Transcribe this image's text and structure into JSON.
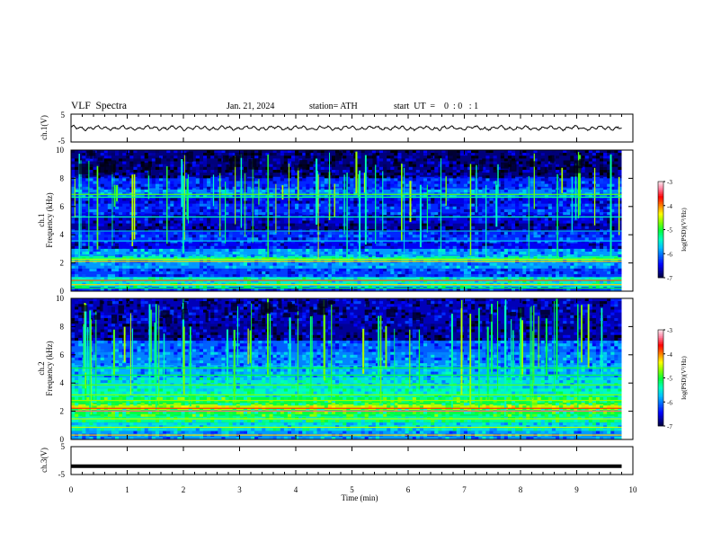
{
  "header": {
    "title": "VLF  Spectra",
    "date": "Jan. 21, 2024",
    "station": "station= ATH",
    "start": "start  UT  =    0  : 0   : 1"
  },
  "colors": {
    "background": "#ffffff",
    "axis": "#000000",
    "colormap": [
      "#000000",
      "#000080",
      "#0000ff",
      "#0060ff",
      "#00c0ff",
      "#00ffc0",
      "#00ff40",
      "#80ff00",
      "#ffff00",
      "#ff8000",
      "#ff0000",
      "#ff80a0",
      "#ffffff"
    ]
  },
  "chart_data": [
    {
      "type": "line",
      "name": "ch1-waveform",
      "ylabel": "ch.1(V)",
      "ylim": [
        -5,
        5
      ],
      "yticks": [
        "5",
        "-5"
      ],
      "xlim": [
        0,
        10
      ],
      "note_values": "near-zero voltage trace spanning 0 to ~9.8 min",
      "y_mean": 0,
      "x_end": 9.8
    },
    {
      "type": "heatmap",
      "name": "ch1-spectrogram",
      "ylabel": "ch.1\nFrequency  (kHz)",
      "ylabel_line1": "ch.1",
      "ylabel_line2": "Frequency  (kHz)",
      "ylim": [
        0,
        10
      ],
      "yticks": [
        "0",
        "2",
        "4",
        "6",
        "8",
        "10"
      ],
      "xlim": [
        0,
        10
      ],
      "x_end": 9.8,
      "colorbar": {
        "label": "log(PSD)(V²/Hz)",
        "range": [
          -7,
          -3
        ],
        "ticks": [
          "-3",
          "-4",
          "-5",
          "-6",
          "-7"
        ]
      }
    },
    {
      "type": "heatmap",
      "name": "ch2-spectrogram",
      "ylabel_line1": "ch.2",
      "ylabel_line2": "Frequency  (kHz)",
      "ylim": [
        0,
        10
      ],
      "yticks": [
        "0",
        "2",
        "4",
        "6",
        "8",
        "10"
      ],
      "xlim": [
        0,
        10
      ],
      "x_end": 9.8,
      "colorbar": {
        "label": "log(PSD)(V²/Hz)",
        "range": [
          -7,
          -3
        ],
        "ticks": [
          "-3",
          "-4",
          "-5",
          "-6",
          "-7"
        ]
      }
    },
    {
      "type": "line",
      "name": "ch3-waveform",
      "ylabel": "ch.3(V)",
      "ylim": [
        -5,
        5
      ],
      "yticks": [
        "5",
        "-5"
      ],
      "xlim": [
        0,
        10
      ],
      "y_mean": -2,
      "x_end": 9.8
    }
  ],
  "xaxis": {
    "label": "Time  (min)",
    "ticks": [
      "0",
      "1",
      "2",
      "3",
      "4",
      "5",
      "6",
      "7",
      "8",
      "9",
      "10"
    ]
  }
}
